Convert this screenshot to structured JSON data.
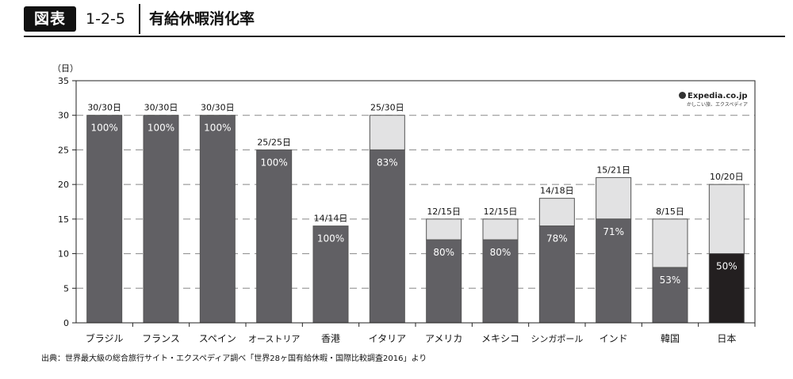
{
  "header": {
    "badge": "図表",
    "figure_number": "1-2-5",
    "title": "有給休暇消化率"
  },
  "logo": {
    "brand": "Expedia.co.jp",
    "sub": "かしこい旅、エクスペディア",
    "icon": "globe-icon"
  },
  "source": "出典：世界最大級の総合旅行サイト・エクスペディア調べ「世界28ヶ国有給休暇・国際比較調査2016」より",
  "chart_data": {
    "type": "bar",
    "ylabel": "（日）",
    "xlabel": "",
    "ylim": [
      0,
      35
    ],
    "yticks": [
      0,
      5,
      10,
      15,
      20,
      25,
      30,
      35
    ],
    "grid": "horizontal-dashed",
    "categories": [
      "ブラジル",
      "フランス",
      "スペイン",
      "オーストリア",
      "香港",
      "イタリア",
      "アメリカ",
      "メキシコ",
      "シンガポール",
      "インド",
      "韓国",
      "日本"
    ],
    "series": [
      {
        "values": [
          30,
          30,
          30,
          25,
          14,
          25,
          12,
          12,
          14,
          15,
          8,
          10
        ]
      },
      {
        "values": [
          30,
          30,
          30,
          25,
          14,
          30,
          15,
          15,
          18,
          21,
          15,
          20
        ]
      }
    ],
    "top_labels": [
      "30/30日",
      "30/30日",
      "30/30日",
      "25/25日",
      "14/14日",
      "25/30日",
      "12/15日",
      "12/15日",
      "14/18日",
      "15/21日",
      "8/15日",
      "10/20日"
    ],
    "percent_labels": [
      "100%",
      "100%",
      "100%",
      "100%",
      "100%",
      "83%",
      "80%",
      "80%",
      "78%",
      "71%",
      "53%",
      "50%"
    ],
    "highlight_category": "日本",
    "colors": {
      "used": "#616064",
      "granted": "#e2e2e3",
      "highlight": "#231f20",
      "outline": "#555555"
    }
  }
}
